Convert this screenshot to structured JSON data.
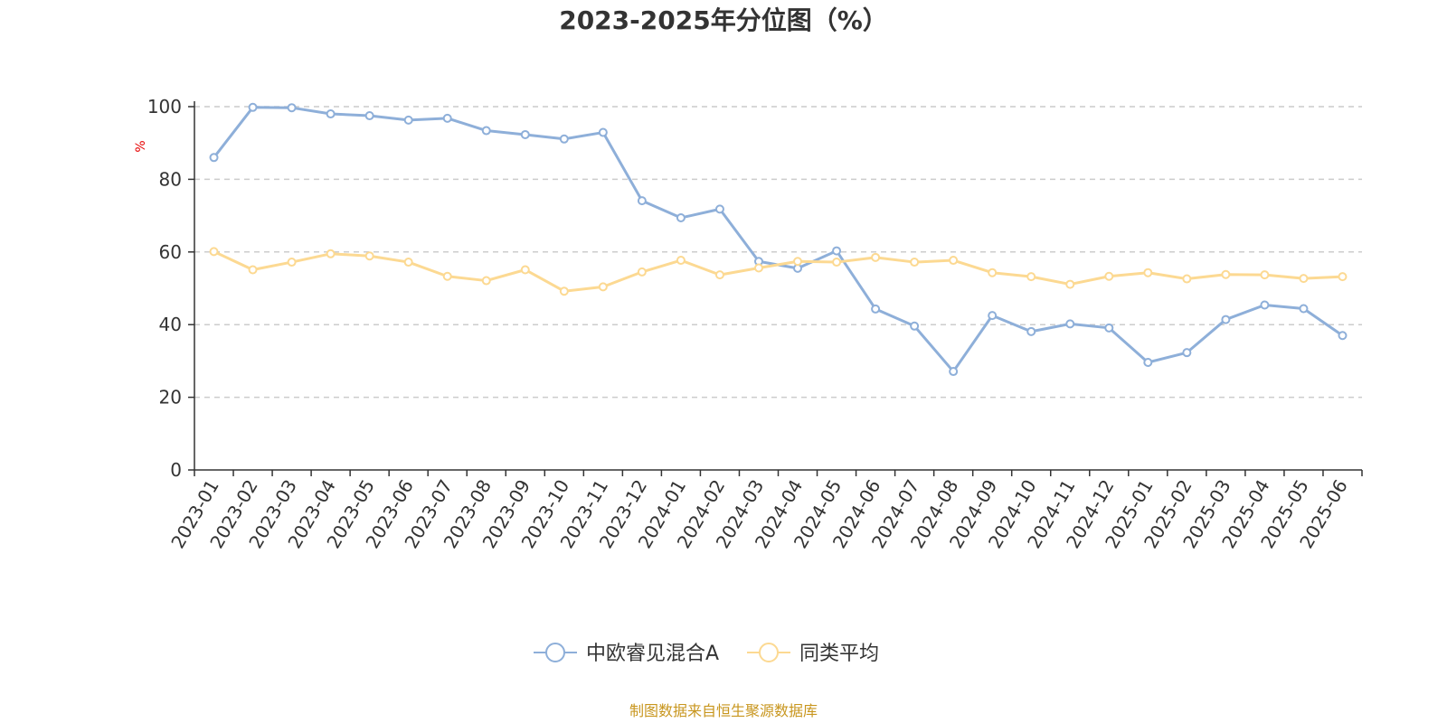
{
  "chart_data": {
    "type": "line",
    "title": "2023-2025年分位图（%）",
    "ylabel": "%",
    "xlabel": "",
    "ylim": [
      0,
      100
    ],
    "yticks": [
      0,
      20,
      40,
      60,
      80,
      100
    ],
    "grid": true,
    "legend_position": "bottom-center",
    "categories": [
      "2023-01",
      "2023-02",
      "2023-03",
      "2023-04",
      "2023-05",
      "2023-06",
      "2023-07",
      "2023-08",
      "2023-09",
      "2023-10",
      "2023-11",
      "2023-12",
      "2024-01",
      "2024-02",
      "2024-03",
      "2024-04",
      "2024-05",
      "2024-06",
      "2024-07",
      "2024-08",
      "2024-09",
      "2024-10",
      "2024-11",
      "2024-12",
      "2025-01",
      "2025-02",
      "2025-03",
      "2025-04",
      "2025-05",
      "2025-06"
    ],
    "series": [
      {
        "name": "中欧睿见混合A",
        "color": "#8eafd9",
        "values": [
          86,
          99.8,
          99.7,
          98,
          97.5,
          96.3,
          96.8,
          93.4,
          92.3,
          91.1,
          92.9,
          74.1,
          69.4,
          71.8,
          57.4,
          55.5,
          60.3,
          44.3,
          39.6,
          27.1,
          42.5,
          38.1,
          40.2,
          39.1,
          29.6,
          32.3,
          41.4,
          45.4,
          44.4,
          37
        ]
      },
      {
        "name": "同类平均",
        "color": "#fcd992",
        "values": [
          60.1,
          55.1,
          57.2,
          59.5,
          58.9,
          57.2,
          53.3,
          52.1,
          55.1,
          49.2,
          50.4,
          54.5,
          57.7,
          53.7,
          55.6,
          57.4,
          57.2,
          58.5,
          57.2,
          57.7,
          54.3,
          53.2,
          51.1,
          53.3,
          54.3,
          52.6,
          53.8,
          53.7,
          52.7,
          53.2
        ]
      }
    ]
  },
  "source": "制图数据来自恒生聚源数据库"
}
